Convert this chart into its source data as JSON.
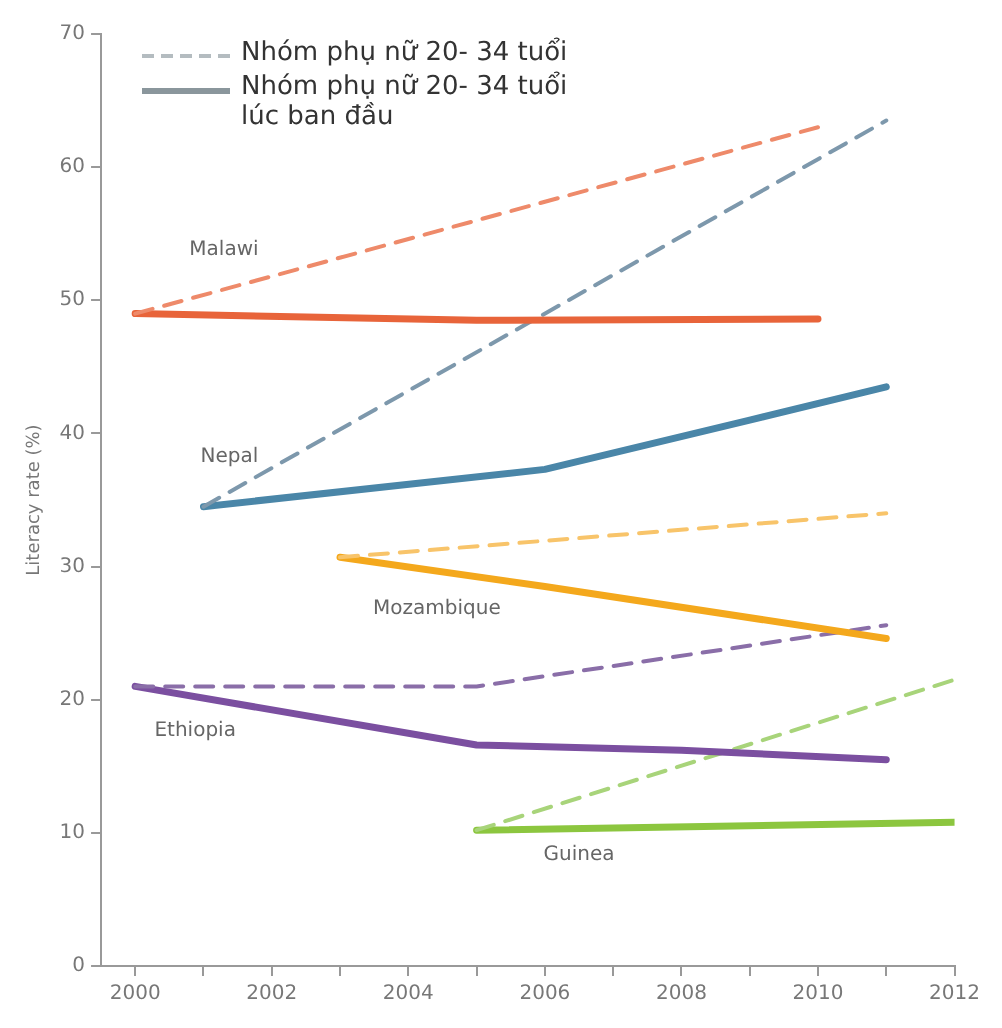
{
  "chart_data": {
    "type": "line",
    "ylabel": "Literacy rate (%)",
    "xlim": [
      1999.5,
      2012
    ],
    "xticks": [
      2000,
      {
        "value": 2001,
        "label": null
      },
      2002,
      {
        "value": 2003,
        "label": null
      },
      2004,
      {
        "value": 2005,
        "label": null
      },
      2006,
      {
        "value": 2007,
        "label": null
      },
      2008,
      {
        "value": 2009,
        "label": null
      },
      2010,
      {
        "value": 2011,
        "label": null
      },
      2012
    ],
    "ylim": [
      0,
      70
    ],
    "yticks": [
      0,
      10,
      20,
      30,
      40,
      50,
      60,
      70
    ],
    "grid": false,
    "legend": "top left",
    "marker": "none",
    "series": [
      {
        "name": "Nhóm phụ nữ 20- 34 tuổi",
        "color": "#b4bcc0",
        "line_style": "dashed"
      },
      {
        "name": "Nhóm phụ nữ 20- 34 tuổi lúc ban đầu",
        "color": "#8a969c",
        "line_style": "solid"
      },
      {
        "color": "#ee8a6a",
        "line_style": "dashed",
        "x": [
          2000,
          2010
        ],
        "values": [
          49,
          63
        ]
      },
      {
        "color": "#e8643a",
        "line_style": "solid",
        "x": [
          2000,
          2005,
          2010
        ],
        "values": [
          49,
          48.5,
          48.6
        ]
      },
      {
        "color": "#7d98ac",
        "line_style": "dashed",
        "x": [
          2001,
          2011
        ],
        "values": [
          34.5,
          63.5
        ]
      },
      {
        "color": "#4a86a8",
        "line_style": "solid",
        "x": [
          2001,
          2006,
          2009,
          2011
        ],
        "values": [
          34.5,
          37.3,
          41,
          43.5
        ]
      },
      {
        "color": "#f8c46a",
        "line_style": "dashed",
        "x": [
          2003,
          2011
        ],
        "values": [
          30.7,
          34
        ]
      },
      {
        "color": "#f4a81c",
        "line_style": "solid",
        "x": [
          2003,
          2006,
          2011
        ],
        "values": [
          30.7,
          28.5,
          24.6
        ]
      },
      {
        "color": "#8a6ea8",
        "line_style": "dashed",
        "x": [
          2000,
          2005,
          2011
        ],
        "values": [
          21,
          21,
          25.6
        ]
      },
      {
        "color": "#7b4fa0",
        "line_style": "solid",
        "x": [
          2000,
          2005,
          2008,
          2011
        ],
        "values": [
          21,
          16.6,
          16.2,
          15.5
        ]
      },
      {
        "color": "#a8d47a",
        "line_style": "dashed",
        "x": [
          2005,
          2012
        ],
        "values": [
          10.2,
          21.5
        ]
      },
      {
        "color": "#8cc63f",
        "line_style": "solid",
        "x": [
          2005,
          2012
        ],
        "values": [
          10.2,
          10.8
        ]
      }
    ],
    "annotations": [
      {
        "text": "Malawi",
        "x": 2001.3,
        "y": 50.8
      },
      {
        "text": "Nepal",
        "x": 2001,
        "y": 34.5
      },
      {
        "text": "Mozambique",
        "x": 2006,
        "y": 28.5
      },
      {
        "text": "Ethiopia",
        "x": 2000,
        "y": 21
      },
      {
        "text": "Guinea",
        "x": 2006.5,
        "y": 10.3
      }
    ]
  }
}
